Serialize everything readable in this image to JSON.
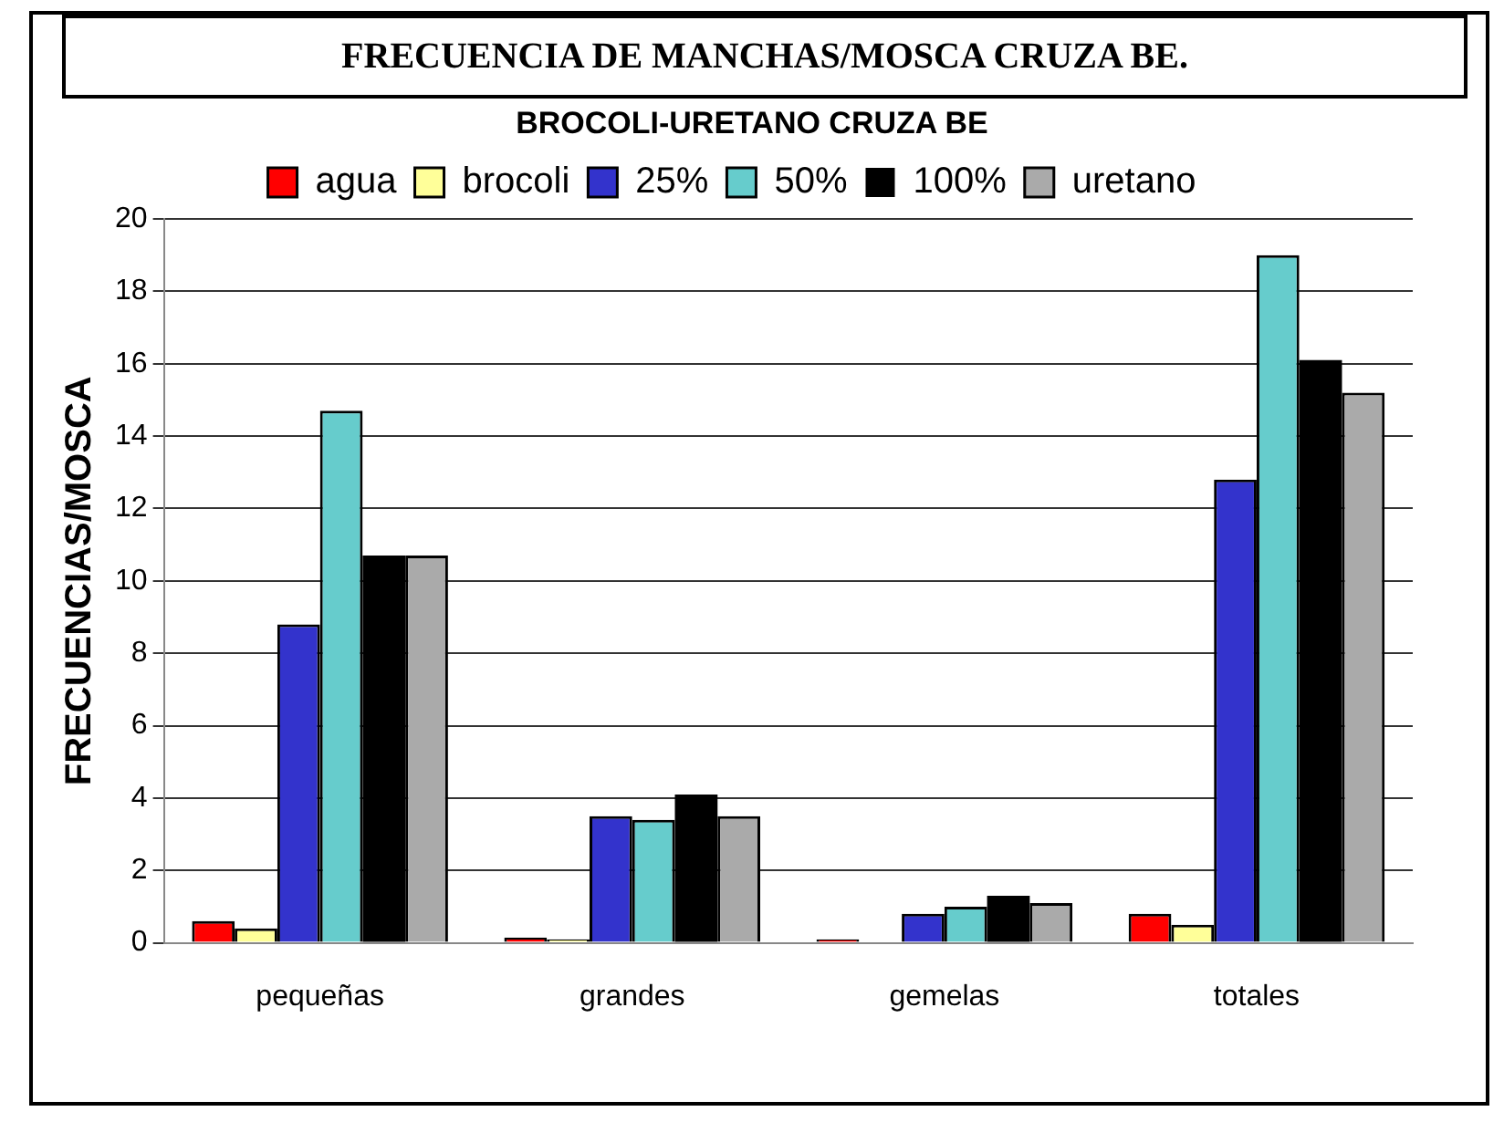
{
  "chart_data": {
    "type": "bar",
    "title": "FRECUENCIA DE MANCHAS/MOSCA CRUZA BE.",
    "subtitle": "BROCOLI-URETANO CRUZA BE",
    "ylabel": "FRECUENCIAS/MOSCA",
    "categories": [
      "pequeñas",
      "grandes",
      "gemelas",
      "totales"
    ],
    "series": [
      {
        "name": "agua",
        "color": "#ff0000",
        "values": [
          0.6,
          0.15,
          0.1,
          0.8
        ]
      },
      {
        "name": "brocoli",
        "color": "#ffff99",
        "values": [
          0.4,
          0.1,
          null,
          0.5
        ]
      },
      {
        "name": "25%",
        "color": "#3333cc",
        "values": [
          8.8,
          3.5,
          0.8,
          12.8
        ]
      },
      {
        "name": "50%",
        "color": "#66cccc",
        "values": [
          14.7,
          3.4,
          1.0,
          19.0
        ]
      },
      {
        "name": "100%",
        "color": "#000000",
        "values": [
          10.7,
          4.1,
          1.3,
          16.1
        ]
      },
      {
        "name": "uretano",
        "color": "#aaaaaa",
        "values": [
          10.7,
          3.5,
          1.1,
          15.2
        ]
      }
    ],
    "ylim": [
      0,
      20
    ],
    "yticks": [
      0,
      2,
      4,
      6,
      8,
      10,
      12,
      14,
      16,
      18,
      20
    ],
    "grid": "y",
    "legend": "top"
  }
}
